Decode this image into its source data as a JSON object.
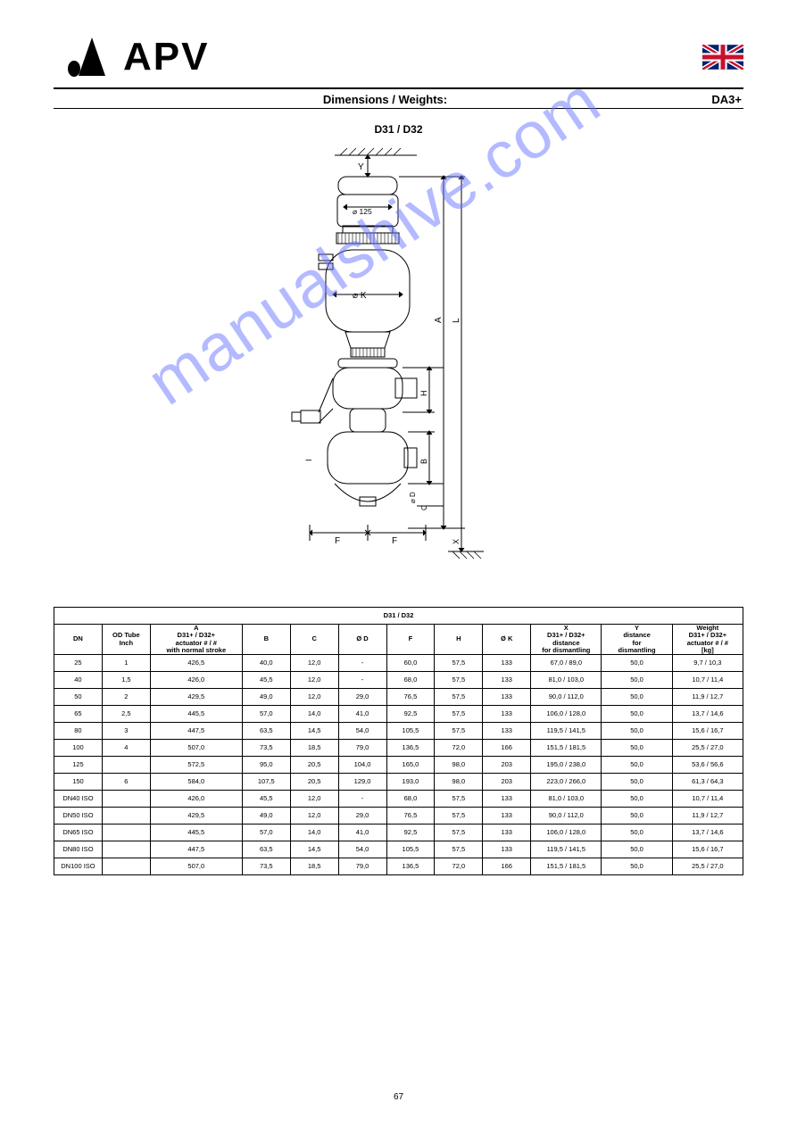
{
  "header": {
    "brand": "APV",
    "subtitle_center": "Dimensions / Weights:",
    "subtitle_right": "DA3+",
    "section_title": "D31 / D32",
    "page_number": "67"
  },
  "diagram": {
    "top_label": "Y",
    "diameter_label": "125",
    "k_label": "K",
    "right_a": "A",
    "right_l": "L",
    "h_label": "H",
    "b_label": "B",
    "d_label": "D",
    "c_label": "C",
    "f_label_left": "F",
    "f_label_right": "F",
    "x_label": "X",
    "i_label": "I",
    "colors": {
      "stroke": "#000000",
      "hatch": "#000000",
      "fill_none": "none"
    }
  },
  "table": {
    "super_header": "D31 / D32",
    "cols": [
      {
        "l1": "DN",
        "l2": " "
      },
      {
        "l1": "OD Tube",
        "l2": "Inch"
      },
      {
        "l1": "A",
        "l2": "D31+ / D32+",
        "l3": "actuator # / #",
        "l4": "with normal stroke"
      },
      {
        "l1": "B"
      },
      {
        "l1": "C"
      },
      {
        "l1": "Ø D"
      },
      {
        "l1": "F"
      },
      {
        "l1": "H"
      },
      {
        "l1": "Ø K"
      },
      {
        "l1": "X",
        "l2": "D31+ / D32+",
        "l3": "distance",
        "l4": "for dismantling"
      },
      {
        "l1": "Y",
        "l2": "distance",
        "l3": "for",
        "l4": "dismantling"
      },
      {
        "l1": "Weight",
        "l2": "D31+ / D32+",
        "l3": "actuator # / #",
        "l4": "[kg]"
      }
    ],
    "rows": [
      [
        "25",
        "1",
        "426,5",
        "40,0",
        "12,0",
        "-",
        "60,0",
        "57,5",
        "133",
        "67,0 / 89,0",
        "50,0",
        "9,7 / 10,3"
      ],
      [
        "40",
        "1,5",
        "426,0",
        "45,5",
        "12,0",
        "-",
        "68,0",
        "57,5",
        "133",
        "81,0 / 103,0",
        "50,0",
        "10,7 / 11,4"
      ],
      [
        "50",
        "2",
        "429,5",
        "49,0",
        "12,0",
        "29,0",
        "76,5",
        "57,5",
        "133",
        "90,0 / 112,0",
        "50,0",
        "11,9 / 12,7"
      ],
      [
        "65",
        "2,5",
        "445,5",
        "57,0",
        "14,0",
        "41,0",
        "92,5",
        "57,5",
        "133",
        "106,0 / 128,0",
        "50,0",
        "13,7 / 14,6"
      ],
      [
        "80",
        "3",
        "447,5",
        "63,5",
        "14,5",
        "54,0",
        "105,5",
        "57,5",
        "133",
        "119,5 / 141,5",
        "50,0",
        "15,6 / 16,7"
      ],
      [
        "100",
        "4",
        "507,0",
        "73,5",
        "18,5",
        "79,0",
        "136,5",
        "72,0",
        "166",
        "151,5 / 181,5",
        "50,0",
        "25,5 / 27,0"
      ],
      [
        "125",
        "",
        "572,5",
        "95,0",
        "20,5",
        "104,0",
        "165,0",
        "98,0",
        "203",
        "195,0 / 238,0",
        "50,0",
        "53,6 / 56,6"
      ],
      [
        "150",
        "6",
        "584,0",
        "107,5",
        "20,5",
        "129,0",
        "193,0",
        "98,0",
        "203",
        "223,0 / 266,0",
        "50,0",
        "61,3 / 64,3"
      ],
      [
        "DN40 ISO",
        "",
        "426,0",
        "45,5",
        "12,0",
        "-",
        "68,0",
        "57,5",
        "133",
        "81,0 / 103,0",
        "50,0",
        "10,7 / 11,4"
      ],
      [
        "DN50 ISO",
        "",
        "429,5",
        "49,0",
        "12,0",
        "29,0",
        "76,5",
        "57,5",
        "133",
        "90,0 / 112,0",
        "50,0",
        "11,9 / 12,7"
      ],
      [
        "DN65 ISO",
        "",
        "445,5",
        "57,0",
        "14,0",
        "41,0",
        "92,5",
        "57,5",
        "133",
        "106,0 / 128,0",
        "50,0",
        "13,7 / 14,6"
      ],
      [
        "DN80 ISO",
        "",
        "447,5",
        "63,5",
        "14,5",
        "54,0",
        "105,5",
        "57,5",
        "133",
        "119,5 / 141,5",
        "50,0",
        "15,6 / 16,7"
      ],
      [
        "DN100 ISO",
        "",
        "507,0",
        "73,5",
        "18,5",
        "79,0",
        "136,5",
        "72,0",
        "166",
        "151,5 / 181,5",
        "50,0",
        "25,5 / 27,0"
      ]
    ]
  },
  "watermark": "manualshive.com"
}
